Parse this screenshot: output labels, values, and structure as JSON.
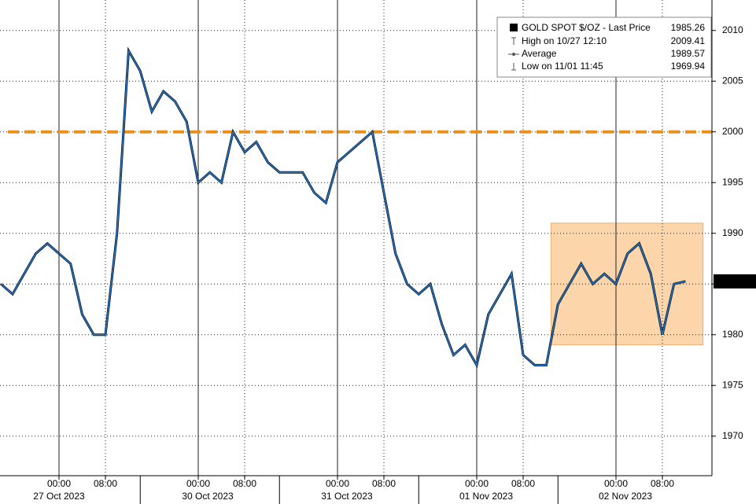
{
  "chart_data": {
    "type": "line",
    "series": [
      {
        "name": "GOLD SPOT $/OZ - Last Price",
        "color": "#1f7ad6",
        "values": [
          1985,
          1984,
          1986,
          1988,
          1989,
          1988,
          1987,
          1982,
          1980,
          1980,
          1990,
          2008,
          2006,
          2002,
          2004,
          2003,
          2001,
          1995,
          1996,
          1995,
          2000,
          1998,
          1999,
          1997,
          1996,
          1996,
          1996,
          1994,
          1993,
          1997,
          1998,
          1999,
          2000,
          1994,
          1988,
          1985,
          1984,
          1985,
          1981,
          1978,
          1979,
          1977,
          1982,
          1984,
          1986,
          1978,
          1977,
          1977,
          1983,
          1985,
          1987,
          1985,
          1986,
          1985,
          1988,
          1989,
          1986,
          1980,
          1985,
          1985.26
        ]
      }
    ],
    "categories": [
      null,
      null,
      null,
      null,
      null,
      "00:00",
      null,
      null,
      null,
      "08:00",
      null,
      null,
      null,
      null,
      null,
      null,
      null,
      "00:00",
      null,
      null,
      null,
      "08:00",
      null,
      null,
      null,
      null,
      null,
      null,
      null,
      "00:00",
      null,
      null,
      null,
      "08:00",
      null,
      null,
      null,
      null,
      null,
      null,
      null,
      "00:00",
      null,
      null,
      null,
      "08:00",
      null,
      null,
      null,
      null,
      null,
      null,
      null,
      "00:00",
      null,
      null,
      null,
      "08:00",
      null,
      null
    ],
    "date_labels": [
      "27 Oct 2023",
      "30 Oct 2023",
      "31 Oct 2023",
      "01 Nov 2023",
      "02 Nov 2023"
    ],
    "ylim": [
      1966.1,
      2013
    ],
    "yticks": [
      1970,
      1975,
      1980,
      1985,
      1990,
      1995,
      2000,
      2005,
      2010
    ],
    "grid": true,
    "reference_line": {
      "value": 2000,
      "color": "#e8901e"
    },
    "highlight": {
      "start": 47,
      "end": 59,
      "ylim": [
        1979,
        1991
      ],
      "color": "#fcd5aa"
    },
    "stats": [
      {
        "label": "High on 10/27 12:10",
        "value": 2009.41
      },
      {
        "label": "Average",
        "value": 1989.57
      },
      {
        "label": "Low on 11/01 11:45",
        "value": 1969.94
      }
    ]
  }
}
